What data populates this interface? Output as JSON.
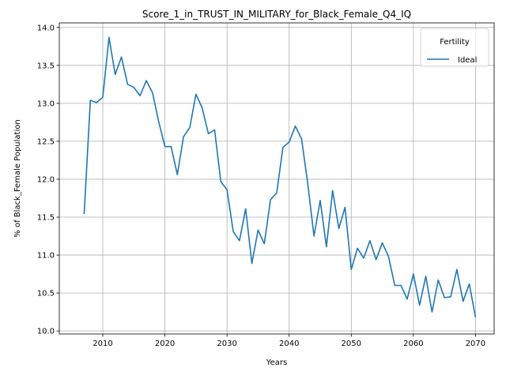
{
  "chart_data": {
    "type": "line",
    "title": "Score_1_in_TRUST_IN_MILITARY_for_Black_Female_Q4_IQ",
    "xlabel": "Years",
    "ylabel": "% of Black_Female Population",
    "xlim": [
      2003,
      2073
    ],
    "ylim": [
      9.96,
      14.06
    ],
    "xticks": [
      2010,
      2020,
      2030,
      2040,
      2050,
      2060,
      2070
    ],
    "yticks": [
      10.0,
      10.5,
      11.0,
      11.5,
      12.0,
      12.5,
      13.0,
      13.5,
      14.0
    ],
    "grid": true,
    "legend": {
      "title": "Fertility",
      "position": "top-right"
    },
    "series": [
      {
        "name": "Ideal",
        "color": "#1f77b4",
        "x": [
          2007,
          2008,
          2009,
          2010,
          2011,
          2012,
          2013,
          2014,
          2015,
          2016,
          2017,
          2018,
          2019,
          2020,
          2021,
          2022,
          2023,
          2024,
          2025,
          2026,
          2027,
          2028,
          2029,
          2030,
          2031,
          2032,
          2033,
          2034,
          2035,
          2036,
          2037,
          2038,
          2039,
          2040,
          2041,
          2042,
          2043,
          2044,
          2045,
          2046,
          2047,
          2048,
          2049,
          2050,
          2051,
          2052,
          2053,
          2054,
          2055,
          2056,
          2057,
          2058,
          2059,
          2060,
          2061,
          2062,
          2063,
          2064,
          2065,
          2066,
          2067,
          2068,
          2069,
          2070
        ],
        "values": [
          11.54,
          13.04,
          13.01,
          13.08,
          13.87,
          13.38,
          13.61,
          13.25,
          13.21,
          13.1,
          13.3,
          13.14,
          12.76,
          12.43,
          12.43,
          12.06,
          12.56,
          12.68,
          13.12,
          12.94,
          12.6,
          12.65,
          11.97,
          11.86,
          11.31,
          11.19,
          11.61,
          10.89,
          11.33,
          11.15,
          11.73,
          11.82,
          12.42,
          12.49,
          12.7,
          12.53,
          11.94,
          11.25,
          11.72,
          11.11,
          11.85,
          11.35,
          11.63,
          10.81,
          11.09,
          10.96,
          11.19,
          10.94,
          11.16,
          10.98,
          10.6,
          10.6,
          10.42,
          10.75,
          10.34,
          10.72,
          10.25,
          10.67,
          10.44,
          10.45,
          10.81,
          10.39,
          10.62,
          10.18
        ]
      }
    ]
  }
}
